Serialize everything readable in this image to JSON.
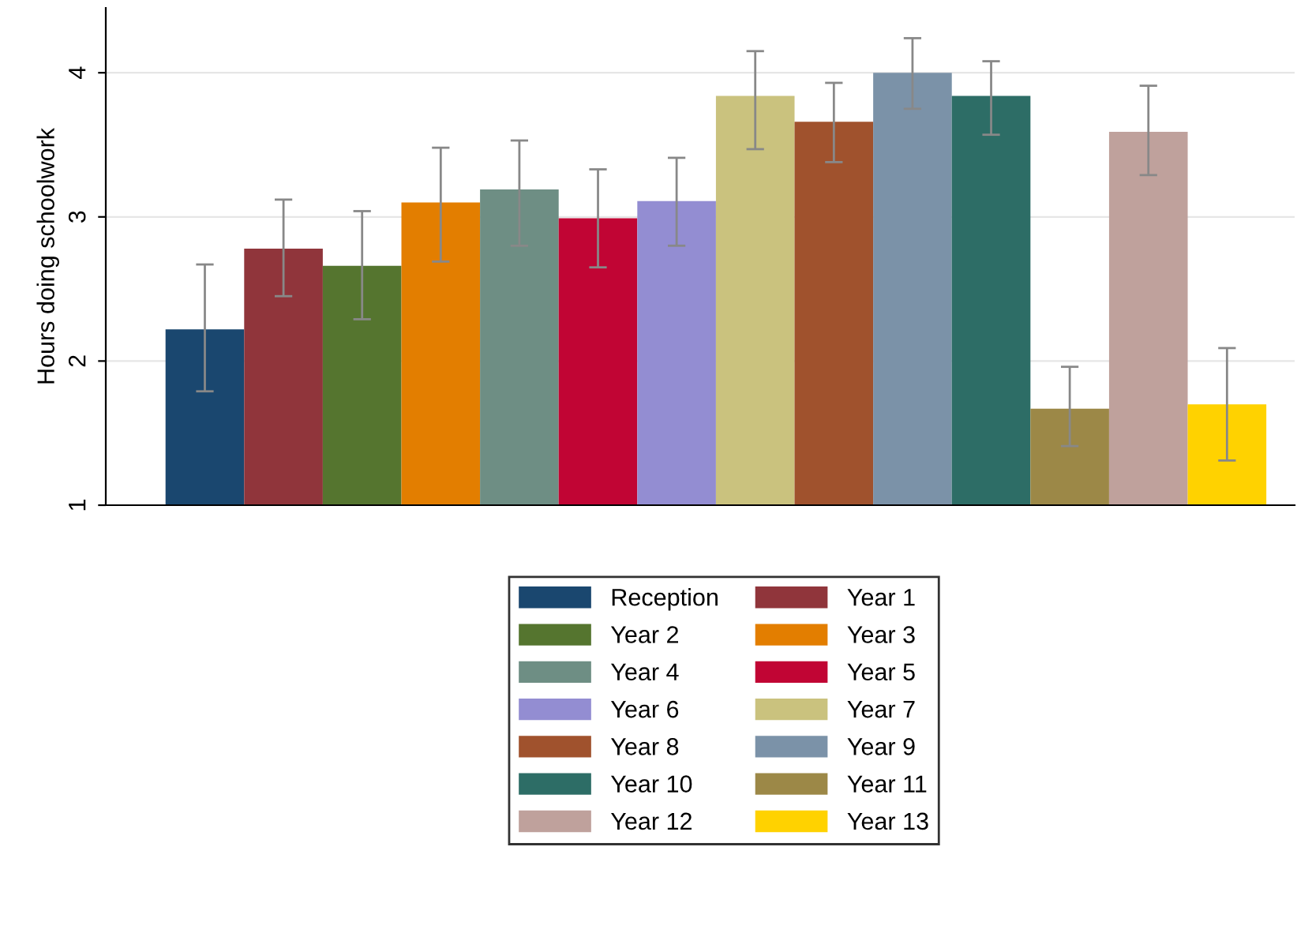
{
  "chart_data": {
    "type": "bar",
    "ylabel": "Hours doing schoolwork",
    "categories": [
      null
    ],
    "ylim": [
      1,
      4.45
    ],
    "yticks": [
      1,
      2,
      3,
      4
    ],
    "grid": "y",
    "legend": "bottom",
    "tick_labels": "y",
    "series": [
      {
        "name": "Reception",
        "color": "#1a476f",
        "values": [
          2.22
        ],
        "errors": [
          [
            1.79,
            2.67
          ]
        ]
      },
      {
        "name": "Year 1",
        "color": "#90353b",
        "values": [
          2.78
        ],
        "errors": [
          [
            2.45,
            3.12
          ]
        ]
      },
      {
        "name": "Year 2",
        "color": "#55752f",
        "values": [
          2.66
        ],
        "errors": [
          [
            2.29,
            3.04
          ]
        ]
      },
      {
        "name": "Year 3",
        "color": "#e37e00",
        "values": [
          3.1
        ],
        "errors": [
          [
            2.69,
            3.48
          ]
        ]
      },
      {
        "name": "Year 4",
        "color": "#6e8e84",
        "values": [
          3.19
        ],
        "errors": [
          [
            2.8,
            3.53
          ]
        ]
      },
      {
        "name": "Year 5",
        "color": "#c10534",
        "values": [
          2.99
        ],
        "errors": [
          [
            2.65,
            3.33
          ]
        ]
      },
      {
        "name": "Year 6",
        "color": "#938dd2",
        "values": [
          3.11
        ],
        "errors": [
          [
            2.8,
            3.41
          ]
        ]
      },
      {
        "name": "Year 7",
        "color": "#cac27e",
        "values": [
          3.84
        ],
        "errors": [
          [
            3.47,
            4.15
          ]
        ]
      },
      {
        "name": "Year 8",
        "color": "#a0522d",
        "values": [
          3.66
        ],
        "errors": [
          [
            3.38,
            3.93
          ]
        ]
      },
      {
        "name": "Year 9",
        "color": "#7b92a8",
        "values": [
          4.0
        ],
        "errors": [
          [
            3.75,
            4.24
          ]
        ]
      },
      {
        "name": "Year 10",
        "color": "#2d6d66",
        "values": [
          3.84
        ],
        "errors": [
          [
            3.57,
            4.08
          ]
        ]
      },
      {
        "name": "Year 11",
        "color": "#9c8847",
        "values": [
          1.67
        ],
        "errors": [
          [
            1.41,
            1.96
          ]
        ]
      },
      {
        "name": "Year 12",
        "color": "#bfa19c",
        "values": [
          3.59
        ],
        "errors": [
          [
            3.29,
            3.91
          ]
        ]
      },
      {
        "name": "Year 13",
        "color": "#ffd200",
        "values": [
          1.7
        ],
        "errors": [
          [
            1.31,
            2.09
          ]
        ]
      }
    ]
  }
}
